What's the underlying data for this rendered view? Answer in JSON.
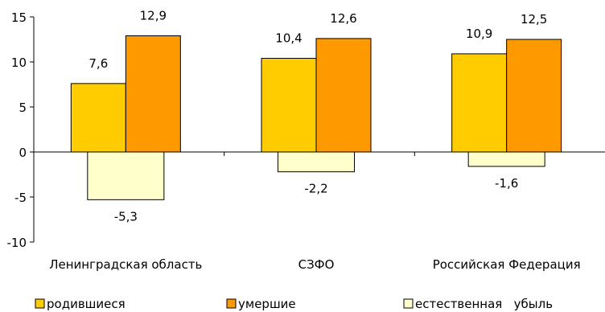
{
  "chart_data": {
    "type": "bar",
    "categories": [
      "Ленинградская область",
      "СЗФО",
      "Российская Федерация"
    ],
    "series": [
      {
        "name": "родившиеся",
        "values": [
          7.6,
          10.4,
          10.9
        ],
        "labels": [
          "7,6",
          "10,4",
          "10,9"
        ],
        "color": "#ffcc00"
      },
      {
        "name": "умершие",
        "values": [
          12.9,
          12.6,
          12.5
        ],
        "labels": [
          "12,9",
          "12,6",
          "12,5"
        ],
        "color": "#ff9900"
      },
      {
        "name": "естественная   убыль",
        "values": [
          -5.3,
          -2.2,
          -1.6
        ],
        "labels": [
          "-5,3",
          "-2,2",
          "-1,6"
        ],
        "color": "#ffffcc"
      }
    ],
    "ylim": [
      -10,
      15
    ],
    "yticks": [
      15,
      10,
      5,
      0,
      -5,
      -10
    ],
    "ytick_labels": [
      "15",
      "10",
      "5",
      "0",
      "-5",
      "-10"
    ],
    "grid": false,
    "legend_position": "bottom"
  }
}
